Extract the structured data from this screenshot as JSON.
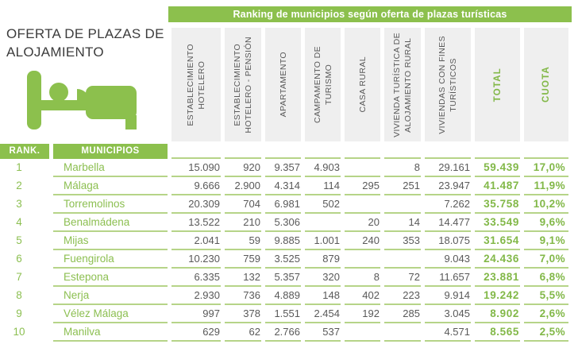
{
  "left_panel": {
    "title": "OFERTA DE PLAZAS DE\nALOJAMIENTO"
  },
  "colors": {
    "accent_green": "#8cc04d",
    "green_text": "#82b848",
    "underline_green": "#b6d488",
    "header_bg": "#efefef",
    "data_text": "#595959",
    "title_text": "#3c3c3c"
  },
  "icons": {
    "bed_icon": "bed-with-sleeping-person"
  },
  "chart_data": {
    "type": "table",
    "title": "Ranking de municipios según oferta de plazas turísticas",
    "rank_header": "RANK.",
    "municipality_header": "MUNICIPIOS",
    "value_columns": [
      "ESTABLECIMIENTO\nHOTELERO",
      "ESTABLECIMIENTO\nHOTELERO - PENSIÓN",
      "APARTAMENTO",
      "CAMPAMENTO DE\nTURISMO",
      "CASA RURAL",
      "VIVIENDA TURÍSTICA DE\nALOJAMIENTO RURAL",
      "VIVIENDAS CON FINES\nTURÍSTICOS",
      "TOTAL",
      "CUOTA"
    ],
    "rows": [
      {
        "rank": "1",
        "municipality": "Marbella",
        "values": [
          "15.090",
          "920",
          "9.357",
          "4.903",
          "",
          "8",
          "29.161"
        ],
        "total": "59.439",
        "cuota": "17,0%"
      },
      {
        "rank": "2",
        "municipality": "Málaga",
        "values": [
          "9.666",
          "2.900",
          "4.314",
          "114",
          "295",
          "251",
          "23.947"
        ],
        "total": "41.487",
        "cuota": "11,9%"
      },
      {
        "rank": "3",
        "municipality": "Torremolinos",
        "values": [
          "20.309",
          "704",
          "6.981",
          "502",
          "",
          "",
          "7.262"
        ],
        "total": "35.758",
        "cuota": "10,2%"
      },
      {
        "rank": "4",
        "municipality": "Benalmádena",
        "values": [
          "13.522",
          "210",
          "5.306",
          "",
          "20",
          "14",
          "14.477"
        ],
        "total": "33.549",
        "cuota": "9,6%"
      },
      {
        "rank": "5",
        "municipality": "Mijas",
        "values": [
          "2.041",
          "59",
          "9.885",
          "1.001",
          "240",
          "353",
          "18.075"
        ],
        "total": "31.654",
        "cuota": "9,1%"
      },
      {
        "rank": "6",
        "municipality": "Fuengirola",
        "values": [
          "10.230",
          "759",
          "3.525",
          "879",
          "",
          "",
          "9.043"
        ],
        "total": "24.436",
        "cuota": "7,0%"
      },
      {
        "rank": "7",
        "municipality": "Estepona",
        "values": [
          "6.335",
          "132",
          "5.357",
          "320",
          "8",
          "72",
          "11.657"
        ],
        "total": "23.881",
        "cuota": "6,8%"
      },
      {
        "rank": "8",
        "municipality": "Nerja",
        "values": [
          "2.930",
          "736",
          "4.889",
          "148",
          "402",
          "223",
          "9.914"
        ],
        "total": "19.242",
        "cuota": "5,5%"
      },
      {
        "rank": "9",
        "municipality": "Vélez Málaga",
        "values": [
          "997",
          "378",
          "1.551",
          "2.454",
          "192",
          "285",
          "3.045"
        ],
        "total": "8.902",
        "cuota": "2,6%"
      },
      {
        "rank": "10",
        "municipality": "Manilva",
        "values": [
          "629",
          "62",
          "2.766",
          "537",
          "",
          "",
          "4.571"
        ],
        "total": "8.565",
        "cuota": "2,5%"
      }
    ]
  }
}
